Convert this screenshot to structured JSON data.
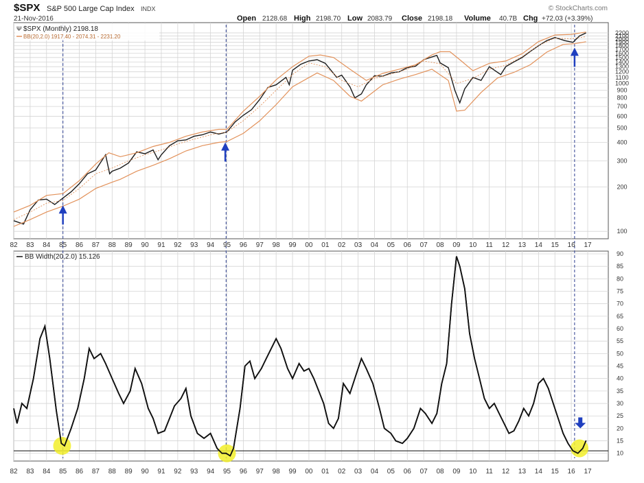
{
  "header": {
    "symbol": "$SPX",
    "index_name": "S&P 500 Large Cap Index",
    "exchange": "INDX",
    "date": "21-Nov-2016",
    "watermark": "© StockCharts.com",
    "open_label": "Open",
    "open_value": "2128.68",
    "high_label": "High",
    "high_value": "2198.70",
    "low_label": "Low",
    "low_value": "2083.79",
    "close_label": "Close",
    "close_value": "2198.18",
    "volume_label": "Volume",
    "volume_value": "40.7B",
    "chg_label": "Chg",
    "chg_value": "+72.03 (+3.39%)"
  },
  "legend": {
    "price": "$SPX (Monthly) 2198.18",
    "bb": "BB(20,2.0) 1917.40 - 2074.31 - 2231.20",
    "bbw": "BB Width(20,2.0) 15.126"
  },
  "colors": {
    "price": "#1a1a1a",
    "price_down": "#c0392b",
    "bands": "#e2915a",
    "bbw_line": "#111111",
    "arrow": "#1f3fbf",
    "highlight": "#f2ee2a",
    "grid": "#d4d4d4",
    "vline": "#2a3d8f"
  },
  "chart_data": [
    {
      "type": "line",
      "title": "$SPX (Monthly) with Bollinger Bands (20,2.0)",
      "y_scale": "log",
      "ylim": [
        92,
        2500
      ],
      "xlim": [
        1982.0,
        2017.0
      ],
      "y_ticks": [
        100,
        200,
        300,
        400,
        500,
        600,
        700,
        800,
        900,
        1000,
        1100,
        1200,
        1300,
        1400,
        1500,
        1600,
        1700,
        1800,
        1900,
        2000,
        2100,
        2200
      ],
      "x_tick_labels": [
        "82",
        "83",
        "84",
        "85",
        "86",
        "87",
        "88",
        "89",
        "90",
        "91",
        "92",
        "93",
        "94",
        "95",
        "96",
        "97",
        "98",
        "99",
        "00",
        "01",
        "02",
        "03",
        "04",
        "05",
        "06",
        "07",
        "08",
        "09",
        "10",
        "11",
        "12",
        "13",
        "14",
        "15",
        "16",
        "17"
      ],
      "grid": true,
      "series": [
        {
          "name": "$SPX",
          "x": [
            1982.0,
            1982.6,
            1983.0,
            1983.5,
            1984.0,
            1984.5,
            1985.0,
            1985.5,
            1986.0,
            1986.5,
            1987.0,
            1987.6,
            1987.85,
            1988.0,
            1988.5,
            1989.0,
            1989.5,
            1990.0,
            1990.5,
            1990.8,
            1991.0,
            1991.5,
            1992.0,
            1992.5,
            1993.0,
            1993.5,
            1994.0,
            1994.5,
            1995.0,
            1995.5,
            1996.0,
            1996.5,
            1997.0,
            1997.5,
            1998.0,
            1998.6,
            1998.8,
            1999.0,
            1999.5,
            2000.0,
            2000.5,
            2001.0,
            2001.7,
            2002.0,
            2002.5,
            2002.8,
            2003.2,
            2003.5,
            2004.0,
            2004.5,
            2005.0,
            2005.5,
            2006.0,
            2006.5,
            2007.0,
            2007.8,
            2008.0,
            2008.5,
            2008.9,
            2009.2,
            2009.5,
            2010.0,
            2010.5,
            2011.0,
            2011.7,
            2012.0,
            2012.5,
            2013.0,
            2013.5,
            2014.0,
            2014.5,
            2015.0,
            2015.6,
            2016.1,
            2016.5,
            2016.9
          ],
          "values": [
            118,
            112,
            140,
            163,
            165,
            152,
            168,
            185,
            210,
            245,
            260,
            330,
            245,
            255,
            268,
            290,
            345,
            335,
            355,
            305,
            330,
            380,
            410,
            415,
            440,
            450,
            470,
            455,
            470,
            550,
            610,
            665,
            780,
            940,
            980,
            1100,
            980,
            1230,
            1350,
            1420,
            1450,
            1370,
            1100,
            1140,
            950,
            800,
            850,
            980,
            1130,
            1120,
            1180,
            1200,
            1280,
            1310,
            1450,
            1550,
            1380,
            1280,
            900,
            740,
            920,
            1100,
            1050,
            1300,
            1150,
            1300,
            1400,
            1500,
            1650,
            1800,
            1950,
            2050,
            1950,
            1900,
            2100,
            2198
          ]
        },
        {
          "name": "BB Upper",
          "x": [
            1982.0,
            1983.0,
            1984.0,
            1985.0,
            1986.0,
            1987.0,
            1987.8,
            1988.5,
            1989.5,
            1990.5,
            1991.5,
            1992.5,
            1993.5,
            1994.5,
            1995.0,
            1996.0,
            1997.0,
            1998.0,
            1999.0,
            2000.0,
            2000.7,
            2001.5,
            2002.5,
            2003.5,
            2004.5,
            2005.5,
            2006.5,
            2007.5,
            2008.0,
            2008.6,
            2009.2,
            2010.0,
            2011.0,
            2012.0,
            2013.0,
            2014.0,
            2015.0,
            2016.0,
            2016.9
          ],
          "values": [
            135,
            150,
            175,
            180,
            220,
            285,
            340,
            320,
            340,
            375,
            400,
            440,
            470,
            490,
            490,
            650,
            820,
            1060,
            1300,
            1530,
            1560,
            1500,
            1250,
            1050,
            1170,
            1250,
            1340,
            1560,
            1640,
            1640,
            1450,
            1220,
            1370,
            1420,
            1590,
            1920,
            2130,
            2150,
            2231
          ]
        },
        {
          "name": "BB Middle",
          "x": [
            1982.0,
            1983.0,
            1984.0,
            1985.0,
            1986.0,
            1987.0,
            1988.0,
            1989.0,
            1990.0,
            1991.0,
            1992.0,
            1993.0,
            1994.0,
            1995.0,
            1996.0,
            1997.0,
            1998.0,
            1999.0,
            2000.0,
            2001.0,
            2002.0,
            2003.0,
            2004.0,
            2005.0,
            2006.0,
            2007.0,
            2008.0,
            2009.0,
            2010.0,
            2011.0,
            2012.0,
            2013.0,
            2014.0,
            2015.0,
            2016.0,
            2016.9
          ],
          "values": [
            120,
            135,
            155,
            162,
            195,
            245,
            268,
            300,
            330,
            355,
            390,
            420,
            450,
            470,
            560,
            700,
            900,
            1150,
            1380,
            1300,
            1050,
            950,
            1080,
            1160,
            1250,
            1420,
            1360,
            1000,
            1080,
            1250,
            1330,
            1520,
            1810,
            2030,
            2010,
            2074
          ]
        },
        {
          "name": "BB Lower",
          "x": [
            1982.0,
            1983.0,
            1984.0,
            1985.0,
            1986.0,
            1987.0,
            1988.0,
            1988.5,
            1989.5,
            1990.5,
            1991.5,
            1992.5,
            1993.5,
            1994.5,
            1995.0,
            1996.0,
            1997.0,
            1998.0,
            1999.0,
            2000.5,
            2001.5,
            2002.5,
            2003.2,
            2004.5,
            2005.5,
            2006.5,
            2007.5,
            2008.5,
            2009.0,
            2009.5,
            2010.5,
            2011.5,
            2012.5,
            2013.5,
            2014.5,
            2015.5,
            2016.2,
            2016.9
          ],
          "values": [
            108,
            120,
            135,
            148,
            165,
            195,
            215,
            225,
            255,
            280,
            310,
            350,
            380,
            400,
            405,
            460,
            560,
            720,
            950,
            1180,
            1050,
            820,
            760,
            980,
            1070,
            1150,
            1250,
            1050,
            650,
            660,
            870,
            1090,
            1190,
            1340,
            1630,
            1840,
            1860,
            1917
          ]
        }
      ],
      "annotations": [
        {
          "type": "up-arrow",
          "x": 1985.0,
          "y": 150
        },
        {
          "type": "up-arrow",
          "x": 1994.9,
          "y": 400
        },
        {
          "type": "up-arrow",
          "x": 2016.2,
          "y": 1750
        }
      ]
    },
    {
      "type": "line",
      "title": "BB Width(20,2.0)",
      "ylim": [
        8,
        90
      ],
      "xlim": [
        1982.0,
        2017.0
      ],
      "y_ticks": [
        10,
        15,
        20,
        25,
        30,
        35,
        40,
        45,
        50,
        55,
        60,
        65,
        70,
        75,
        80,
        85,
        90
      ],
      "x_tick_labels": [
        "82",
        "83",
        "84",
        "85",
        "86",
        "87",
        "88",
        "89",
        "90",
        "91",
        "92",
        "93",
        "94",
        "95",
        "96",
        "97",
        "98",
        "99",
        "00",
        "01",
        "02",
        "03",
        "04",
        "05",
        "06",
        "07",
        "08",
        "09",
        "10",
        "11",
        "12",
        "13",
        "14",
        "15",
        "16",
        "17"
      ],
      "grid": true,
      "reference_line": 11,
      "series": [
        {
          "name": "BB Width(20,2.0)",
          "x": [
            1982.0,
            1982.2,
            1982.5,
            1982.8,
            1983.2,
            1983.6,
            1983.9,
            1984.2,
            1984.6,
            1984.9,
            1985.1,
            1985.5,
            1985.9,
            1986.3,
            1986.6,
            1986.9,
            1987.3,
            1987.6,
            1988.0,
            1988.4,
            1988.7,
            1989.1,
            1989.4,
            1989.8,
            1990.2,
            1990.5,
            1990.8,
            1991.2,
            1991.5,
            1991.8,
            1992.2,
            1992.5,
            1992.8,
            1993.2,
            1993.6,
            1994.0,
            1994.4,
            1994.7,
            1994.95,
            1995.2,
            1995.4,
            1995.8,
            1996.1,
            1996.4,
            1996.7,
            1997.1,
            1997.4,
            1997.7,
            1998.0,
            1998.3,
            1998.7,
            1999.0,
            1999.4,
            1999.7,
            2000.0,
            2000.3,
            2000.6,
            2000.9,
            2001.2,
            2001.5,
            2001.8,
            2002.1,
            2002.5,
            2002.9,
            2003.2,
            2003.5,
            2003.9,
            2004.3,
            2004.6,
            2005.0,
            2005.3,
            2005.7,
            2006.0,
            2006.4,
            2006.8,
            2007.1,
            2007.5,
            2007.8,
            2008.1,
            2008.4,
            2008.7,
            2009.0,
            2009.2,
            2009.5,
            2009.8,
            2010.1,
            2010.4,
            2010.7,
            2011.0,
            2011.3,
            2011.6,
            2011.9,
            2012.2,
            2012.5,
            2012.8,
            2013.1,
            2013.4,
            2013.7,
            2014.0,
            2014.3,
            2014.6,
            2014.9,
            2015.2,
            2015.5,
            2015.8,
            2016.1,
            2016.4,
            2016.7,
            2016.9
          ],
          "values": [
            28,
            22,
            30,
            28,
            40,
            56,
            61,
            48,
            27,
            14,
            13,
            20,
            28,
            40,
            52,
            48,
            50,
            46,
            40,
            34,
            30,
            35,
            44,
            38,
            28,
            24,
            18,
            19,
            24,
            29,
            32,
            36,
            25,
            18,
            16,
            18,
            12,
            10,
            10,
            9,
            12,
            28,
            45,
            47,
            40,
            44,
            48,
            52,
            56,
            52,
            44,
            40,
            46,
            43,
            44,
            40,
            35,
            30,
            22,
            20,
            24,
            38,
            34,
            42,
            48,
            44,
            38,
            28,
            20,
            18,
            15,
            14,
            16,
            20,
            28,
            26,
            22,
            26,
            38,
            46,
            70,
            89,
            85,
            76,
            58,
            48,
            40,
            32,
            28,
            30,
            26,
            22,
            18,
            19,
            23,
            28,
            25,
            30,
            38,
            40,
            36,
            30,
            24,
            18,
            14,
            11,
            10,
            12,
            15.1
          ]
        }
      ],
      "annotations": [
        {
          "type": "highlight-circle",
          "x": 1984.95,
          "y": 13
        },
        {
          "type": "highlight-circle",
          "x": 1995.0,
          "y": 10
        },
        {
          "type": "highlight-circle",
          "x": 2016.5,
          "y": 12
        },
        {
          "type": "down-arrow",
          "x": 2016.55,
          "y": 20
        }
      ]
    }
  ],
  "signal_dates": [
    1985.0,
    1994.95,
    2016.2
  ]
}
